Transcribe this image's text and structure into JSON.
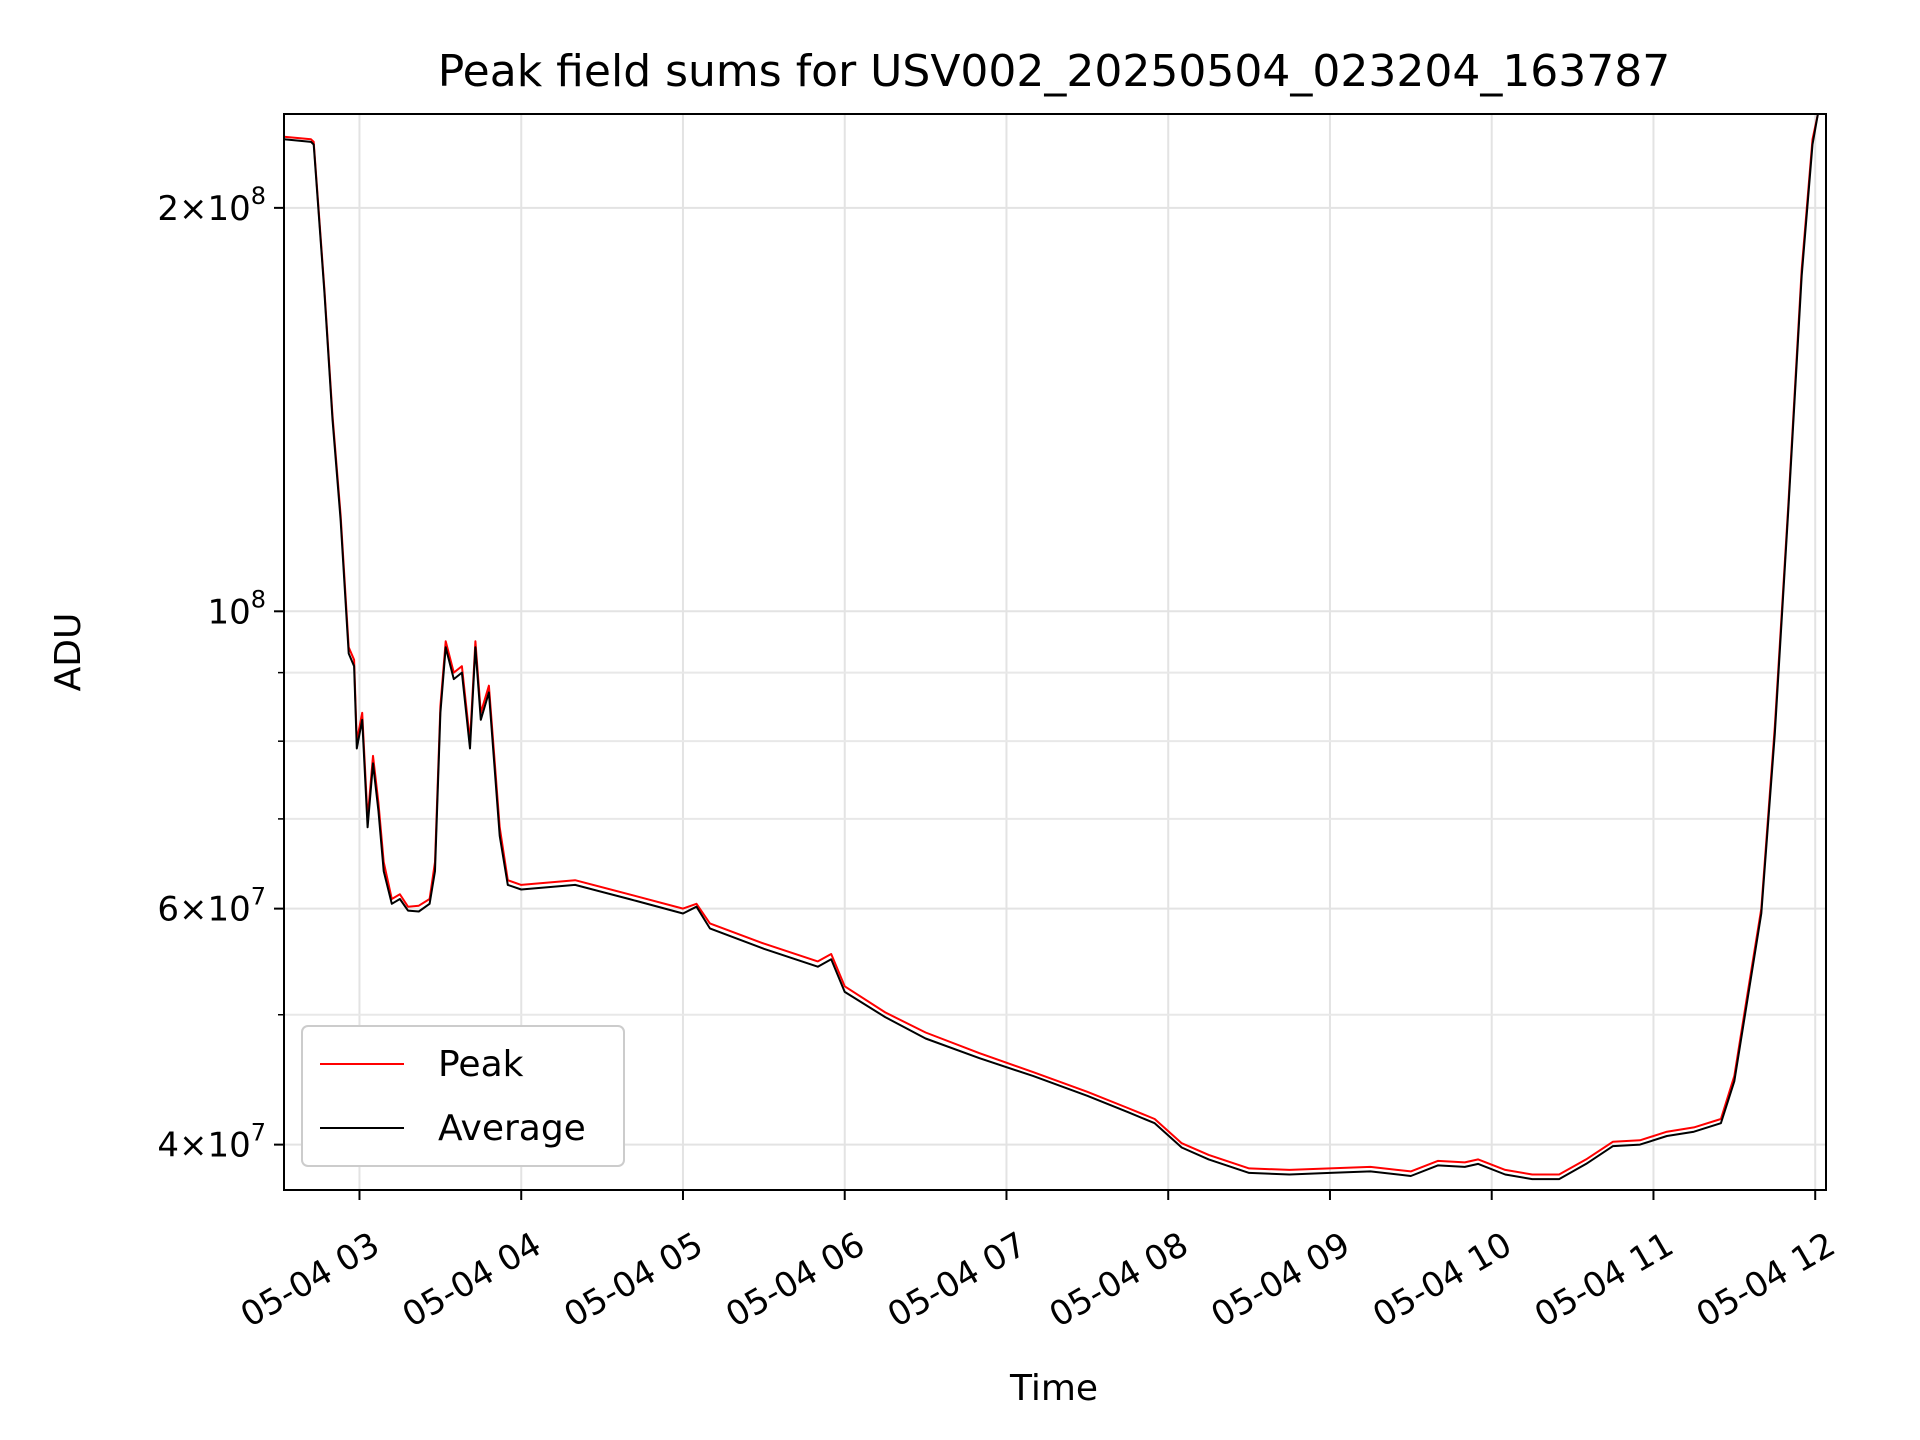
{
  "chart_data": {
    "type": "line",
    "title": "Peak field sums for USV002_20250504_023204_163787",
    "xlabel": "Time",
    "ylabel": "ADU",
    "yscale": "log",
    "xlim": [
      "2025-05-04 02:32",
      "2025-05-04 12:04"
    ],
    "ylim": [
      37000000,
      235000000
    ],
    "grid": true,
    "legend_position": "lower-left",
    "x_ticks": [
      {
        "time": "2025-05-04 03:00",
        "label": "05-04 03"
      },
      {
        "time": "2025-05-04 04:00",
        "label": "05-04 04"
      },
      {
        "time": "2025-05-04 05:00",
        "label": "05-04 05"
      },
      {
        "time": "2025-05-04 06:00",
        "label": "05-04 06"
      },
      {
        "time": "2025-05-04 07:00",
        "label": "05-04 07"
      },
      {
        "time": "2025-05-04 08:00",
        "label": "05-04 08"
      },
      {
        "time": "2025-05-04 09:00",
        "label": "05-04 09"
      },
      {
        "time": "2025-05-04 10:00",
        "label": "05-04 10"
      },
      {
        "time": "2025-05-04 11:00",
        "label": "05-04 11"
      },
      {
        "time": "2025-05-04 12:00",
        "label": "05-04 12"
      }
    ],
    "y_ticks": [
      {
        "value": 40000000,
        "mantissa": "4",
        "exp": "7"
      },
      {
        "value": 60000000,
        "mantissa": "6",
        "exp": "7"
      },
      {
        "value": 100000000,
        "mantissa": "",
        "exp": "8"
      },
      {
        "value": 200000000,
        "mantissa": "2",
        "exp": "8"
      }
    ],
    "y_minor_ticks": [
      50000000,
      70000000,
      80000000,
      90000000,
      300000000
    ],
    "series": [
      {
        "name": "Peak",
        "color": "#ff0000",
        "points": [
          [
            "2025-05-04 02:32",
            226000000
          ],
          [
            "2025-05-04 02:42",
            225000000
          ],
          [
            "2025-05-04 02:43",
            224000000
          ],
          [
            "2025-05-04 02:47",
            174000000
          ],
          [
            "2025-05-04 02:50",
            140000000
          ],
          [
            "2025-05-04 02:53",
            118000000
          ],
          [
            "2025-05-04 02:56",
            94000000
          ],
          [
            "2025-05-04 02:58",
            92000000
          ],
          [
            "2025-05-04 02:59",
            80000000
          ],
          [
            "2025-05-04 03:01",
            84000000
          ],
          [
            "2025-05-04 03:03",
            70000000
          ],
          [
            "2025-05-04 03:05",
            78000000
          ],
          [
            "2025-05-04 03:07",
            72000000
          ],
          [
            "2025-05-04 03:09",
            65000000
          ],
          [
            "2025-05-04 03:12",
            61000000
          ],
          [
            "2025-05-04 03:15",
            61500000
          ],
          [
            "2025-05-04 03:18",
            60200000
          ],
          [
            "2025-05-04 03:22",
            60300000
          ],
          [
            "2025-05-04 03:26",
            61000000
          ],
          [
            "2025-05-04 03:28",
            65000000
          ],
          [
            "2025-05-04 03:30",
            85000000
          ],
          [
            "2025-05-04 03:32",
            95000000
          ],
          [
            "2025-05-04 03:35",
            90000000
          ],
          [
            "2025-05-04 03:38",
            91000000
          ],
          [
            "2025-05-04 03:41",
            80000000
          ],
          [
            "2025-05-04 03:43",
            95000000
          ],
          [
            "2025-05-04 03:45",
            84000000
          ],
          [
            "2025-05-04 03:48",
            88000000
          ],
          [
            "2025-05-04 03:52",
            69000000
          ],
          [
            "2025-05-04 03:55",
            63000000
          ],
          [
            "2025-05-04 04:00",
            62500000
          ],
          [
            "2025-05-04 04:20",
            63000000
          ],
          [
            "2025-05-04 04:40",
            61500000
          ],
          [
            "2025-05-04 05:00",
            60000000
          ],
          [
            "2025-05-04 05:05",
            60500000
          ],
          [
            "2025-05-04 05:10",
            58500000
          ],
          [
            "2025-05-04 05:30",
            56500000
          ],
          [
            "2025-05-04 05:50",
            54800000
          ],
          [
            "2025-05-04 05:55",
            55500000
          ],
          [
            "2025-05-04 06:00",
            52500000
          ],
          [
            "2025-05-04 06:15",
            50200000
          ],
          [
            "2025-05-04 06:30",
            48500000
          ],
          [
            "2025-05-04 06:50",
            46800000
          ],
          [
            "2025-05-04 07:10",
            45300000
          ],
          [
            "2025-05-04 07:30",
            43800000
          ],
          [
            "2025-05-04 07:45",
            42600000
          ],
          [
            "2025-05-04 07:55",
            41800000
          ],
          [
            "2025-05-04 08:05",
            40100000
          ],
          [
            "2025-05-04 08:15",
            39300000
          ],
          [
            "2025-05-04 08:30",
            38400000
          ],
          [
            "2025-05-04 08:45",
            38300000
          ],
          [
            "2025-05-04 09:00",
            38400000
          ],
          [
            "2025-05-04 09:15",
            38500000
          ],
          [
            "2025-05-04 09:30",
            38200000
          ],
          [
            "2025-05-04 09:40",
            38900000
          ],
          [
            "2025-05-04 09:50",
            38800000
          ],
          [
            "2025-05-04 09:55",
            39000000
          ],
          [
            "2025-05-04 10:05",
            38300000
          ],
          [
            "2025-05-04 10:15",
            38000000
          ],
          [
            "2025-05-04 10:25",
            38000000
          ],
          [
            "2025-05-04 10:35",
            39000000
          ],
          [
            "2025-05-04 10:45",
            40200000
          ],
          [
            "2025-05-04 10:55",
            40300000
          ],
          [
            "2025-05-04 11:05",
            40900000
          ],
          [
            "2025-05-04 11:15",
            41200000
          ],
          [
            "2025-05-04 11:25",
            41800000
          ],
          [
            "2025-05-04 11:30",
            45000000
          ],
          [
            "2025-05-04 11:35",
            52000000
          ],
          [
            "2025-05-04 11:40",
            60000000
          ],
          [
            "2025-05-04 11:45",
            82000000
          ],
          [
            "2025-05-04 11:50",
            120000000
          ],
          [
            "2025-05-04 11:55",
            180000000
          ],
          [
            "2025-05-04 11:59",
            225000000
          ],
          [
            "2025-05-04 12:01",
            235000000
          ],
          [
            "2025-05-04 12:04",
            235000000
          ]
        ]
      },
      {
        "name": "Average",
        "color": "#000000",
        "points": [
          [
            "2025-05-04 02:32",
            225000000
          ],
          [
            "2025-05-04 02:42",
            224000000
          ],
          [
            "2025-05-04 02:43",
            223000000
          ],
          [
            "2025-05-04 02:47",
            173000000
          ],
          [
            "2025-05-04 02:50",
            139000000
          ],
          [
            "2025-05-04 02:53",
            117000000
          ],
          [
            "2025-05-04 02:56",
            93000000
          ],
          [
            "2025-05-04 02:58",
            91000000
          ],
          [
            "2025-05-04 02:59",
            79000000
          ],
          [
            "2025-05-04 03:01",
            83000000
          ],
          [
            "2025-05-04 03:03",
            69000000
          ],
          [
            "2025-05-04 03:05",
            77000000
          ],
          [
            "2025-05-04 03:07",
            71000000
          ],
          [
            "2025-05-04 03:09",
            64000000
          ],
          [
            "2025-05-04 03:12",
            60500000
          ],
          [
            "2025-05-04 03:15",
            61000000
          ],
          [
            "2025-05-04 03:18",
            59800000
          ],
          [
            "2025-05-04 03:22",
            59700000
          ],
          [
            "2025-05-04 03:26",
            60500000
          ],
          [
            "2025-05-04 03:28",
            64000000
          ],
          [
            "2025-05-04 03:30",
            84000000
          ],
          [
            "2025-05-04 03:32",
            94000000
          ],
          [
            "2025-05-04 03:35",
            89000000
          ],
          [
            "2025-05-04 03:38",
            90000000
          ],
          [
            "2025-05-04 03:41",
            79000000
          ],
          [
            "2025-05-04 03:43",
            94000000
          ],
          [
            "2025-05-04 03:45",
            83000000
          ],
          [
            "2025-05-04 03:48",
            87000000
          ],
          [
            "2025-05-04 03:52",
            68000000
          ],
          [
            "2025-05-04 03:55",
            62500000
          ],
          [
            "2025-05-04 04:00",
            62000000
          ],
          [
            "2025-05-04 04:20",
            62500000
          ],
          [
            "2025-05-04 04:40",
            61000000
          ],
          [
            "2025-05-04 05:00",
            59500000
          ],
          [
            "2025-05-04 05:05",
            60200000
          ],
          [
            "2025-05-04 05:10",
            58000000
          ],
          [
            "2025-05-04 05:30",
            56000000
          ],
          [
            "2025-05-04 05:50",
            54300000
          ],
          [
            "2025-05-04 05:55",
            55000000
          ],
          [
            "2025-05-04 06:00",
            52000000
          ],
          [
            "2025-05-04 06:15",
            49800000
          ],
          [
            "2025-05-04 06:30",
            48000000
          ],
          [
            "2025-05-04 06:50",
            46400000
          ],
          [
            "2025-05-04 07:10",
            45000000
          ],
          [
            "2025-05-04 07:30",
            43500000
          ],
          [
            "2025-05-04 07:45",
            42300000
          ],
          [
            "2025-05-04 07:55",
            41500000
          ],
          [
            "2025-05-04 08:05",
            39800000
          ],
          [
            "2025-05-04 08:15",
            39000000
          ],
          [
            "2025-05-04 08:30",
            38100000
          ],
          [
            "2025-05-04 08:45",
            38000000
          ],
          [
            "2025-05-04 09:00",
            38100000
          ],
          [
            "2025-05-04 09:15",
            38200000
          ],
          [
            "2025-05-04 09:30",
            37900000
          ],
          [
            "2025-05-04 09:40",
            38600000
          ],
          [
            "2025-05-04 09:50",
            38500000
          ],
          [
            "2025-05-04 09:55",
            38700000
          ],
          [
            "2025-05-04 10:05",
            38000000
          ],
          [
            "2025-05-04 10:15",
            37700000
          ],
          [
            "2025-05-04 10:25",
            37700000
          ],
          [
            "2025-05-04 10:35",
            38700000
          ],
          [
            "2025-05-04 10:45",
            39900000
          ],
          [
            "2025-05-04 10:55",
            40000000
          ],
          [
            "2025-05-04 11:05",
            40600000
          ],
          [
            "2025-05-04 11:15",
            40900000
          ],
          [
            "2025-05-04 11:25",
            41500000
          ],
          [
            "2025-05-04 11:30",
            44600000
          ],
          [
            "2025-05-04 11:35",
            51500000
          ],
          [
            "2025-05-04 11:40",
            59500000
          ],
          [
            "2025-05-04 11:45",
            81000000
          ],
          [
            "2025-05-04 11:50",
            119000000
          ],
          [
            "2025-05-04 11:55",
            178000000
          ],
          [
            "2025-05-04 11:59",
            223000000
          ],
          [
            "2025-05-04 12:01",
            235000000
          ],
          [
            "2025-05-04 12:04",
            235000000
          ]
        ]
      }
    ],
    "legend": [
      {
        "label": "Peak",
        "color": "#ff0000"
      },
      {
        "label": "Average",
        "color": "#000000"
      }
    ]
  }
}
